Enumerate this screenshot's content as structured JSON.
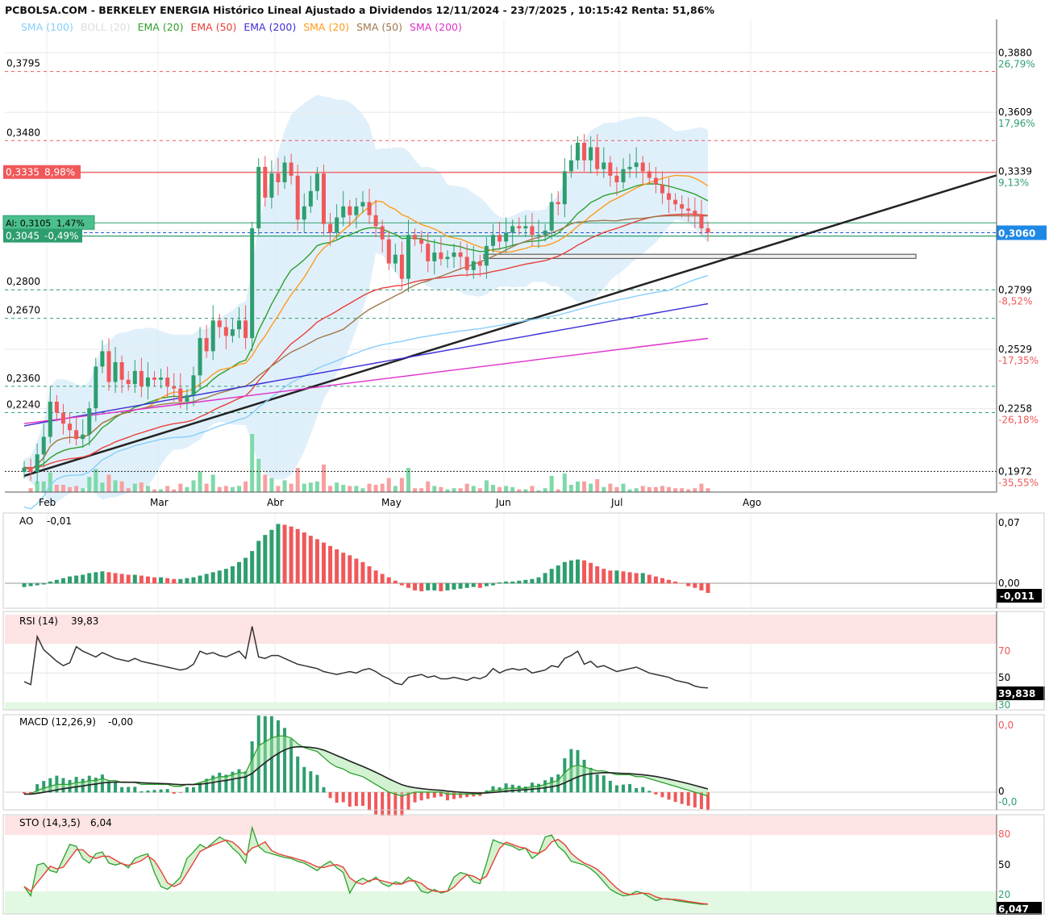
{
  "header": {
    "title": "PCBOLSA.COM - BERKELEY ENERGIA Histórico Lineal Ajustado a Dividendos 12/11/2024 - 23/7/2025 , 10:15:42 Renta: 51,86%"
  },
  "legend": [
    {
      "label": "SMA (100)",
      "color": "#87cefa"
    },
    {
      "label": "BOLL (20)",
      "color": "#dcdcdc"
    },
    {
      "label": "EMA (20)",
      "color": "#2ca02c"
    },
    {
      "label": "EMA (50)",
      "color": "#e8403a"
    },
    {
      "label": "EMA (200)",
      "color": "#3b2fd6"
    },
    {
      "label": "SMA (20)",
      "color": "#ff9a1a"
    },
    {
      "label": "SMA (50)",
      "color": "#a0784a"
    },
    {
      "label": "SMA (200)",
      "color": "#e030c8"
    }
  ],
  "colors": {
    "up": "#2e9e6e",
    "down": "#f0585a",
    "boll_fill": "#d8ecfa"
  },
  "main": {
    "ylim": [
      0.1878,
      0.3948
    ],
    "right_ticks": [
      {
        "v": 0.388,
        "label": "0,3880",
        "pct": "26,79%",
        "pct_color": "#2e9e6e"
      },
      {
        "v": 0.3609,
        "label": "0,3609",
        "pct": "17,96%",
        "pct_color": "#2e9e6e"
      },
      {
        "v": 0.3339,
        "label": "0,3339",
        "pct": "9,13%",
        "pct_color": "#2e9e6e"
      },
      {
        "v": 0.3069,
        "label": "0,3069",
        "pct": "",
        "pct_color": "#2e9e6e"
      },
      {
        "v": 0.2799,
        "label": "0,2799",
        "pct": "-8,52%",
        "pct_color": "#f0585a"
      },
      {
        "v": 0.2529,
        "label": "0,2529",
        "pct": "-17,35%",
        "pct_color": "#f0585a"
      },
      {
        "v": 0.2258,
        "label": "0,2258",
        "pct": "-26,18%",
        "pct_color": "#f0585a"
      },
      {
        "v": 0.1972,
        "label": "0,1972",
        "pct": "-35,55%",
        "pct_color": "#f0585a"
      }
    ],
    "levels": [
      {
        "v": 0.3795,
        "label": "0,3795",
        "color": "#f0585a"
      },
      {
        "v": 0.348,
        "label": "0,3480",
        "color": "#f0585a"
      },
      {
        "v": 0.28,
        "label": "0,2800",
        "color": "#2e9e6e"
      },
      {
        "v": 0.267,
        "label": "0,2670",
        "color": "#2e9e6e"
      },
      {
        "v": 0.236,
        "label": "0,2360",
        "color": "#2e9e6e"
      },
      {
        "v": 0.224,
        "label": "0,2240",
        "color": "#2e9e6e"
      }
    ],
    "tags": {
      "resistance": {
        "v": 0.3335,
        "label": "0,3335",
        "pct": "8,98%"
      },
      "alert": {
        "v": 0.3105,
        "label": "Al: 0,3105",
        "pct": "1,47%"
      },
      "support": {
        "v": 0.3045,
        "label": "0,3045",
        "pct": "-0,49%"
      },
      "last": {
        "v": 0.306,
        "label": "0,3060"
      }
    },
    "months": [
      "Feb",
      "Mar",
      "Abr",
      "May",
      "Jun",
      "Jul",
      "Ago"
    ]
  },
  "ao": {
    "title": "AO",
    "value": "-0,01",
    "ticks": [
      "0,07",
      "0,00"
    ],
    "last": "-0,011"
  },
  "rsi": {
    "title": "RSI (14)",
    "value": "39,83",
    "ticks": [
      "70",
      "50",
      "30"
    ],
    "last": "39,838"
  },
  "macd": {
    "title": "MACD (12,26,9)",
    "value": "-0,00",
    "ticks": [
      "0,0",
      "0",
      "-0,0"
    ]
  },
  "sto": {
    "title": "STO (14,3,5)",
    "value": "6,04",
    "ticks": [
      "80",
      "50",
      "20"
    ],
    "last": "6,047"
  },
  "chart_data": {
    "type": "candlestick",
    "x_start": "2025-01-27",
    "x_end": "2025-07-23",
    "close": [
      0.199,
      0.197,
      0.205,
      0.213,
      0.229,
      0.224,
      0.219,
      0.216,
      0.212,
      0.214,
      0.226,
      0.245,
      0.252,
      0.238,
      0.247,
      0.239,
      0.237,
      0.243,
      0.236,
      0.24,
      0.239,
      0.24,
      0.236,
      0.235,
      0.229,
      0.232,
      0.241,
      0.258,
      0.252,
      0.266,
      0.263,
      0.259,
      0.262,
      0.266,
      0.258,
      0.308,
      0.336,
      0.322,
      0.333,
      0.329,
      0.338,
      0.332,
      0.312,
      0.318,
      0.325,
      0.333,
      0.31,
      0.306,
      0.313,
      0.318,
      0.314,
      0.318,
      0.32,
      0.314,
      0.309,
      0.303,
      0.292,
      0.296,
      0.285,
      0.305,
      0.303,
      0.301,
      0.293,
      0.297,
      0.294,
      0.295,
      0.297,
      0.295,
      0.289,
      0.293,
      0.291,
      0.3,
      0.305,
      0.302,
      0.306,
      0.309,
      0.308,
      0.309,
      0.305,
      0.305,
      0.307,
      0.32,
      0.319,
      0.334,
      0.339,
      0.347,
      0.339,
      0.345,
      0.335,
      0.338,
      0.332,
      0.329,
      0.335,
      0.336,
      0.338,
      0.334,
      0.331,
      0.328,
      0.324,
      0.321,
      0.319,
      0.317,
      0.316,
      0.314,
      0.308,
      0.306
    ],
    "ao": [
      -0.004,
      -0.003,
      -0.002,
      -0.001,
      0.002,
      0.004,
      0.006,
      0.008,
      0.009,
      0.01,
      0.012,
      0.013,
      0.014,
      0.013,
      0.012,
      0.011,
      0.01,
      0.01,
      0.009,
      0.008,
      0.007,
      0.007,
      0.006,
      0.005,
      0.005,
      0.006,
      0.007,
      0.009,
      0.011,
      0.013,
      0.015,
      0.017,
      0.02,
      0.025,
      0.03,
      0.038,
      0.05,
      0.057,
      0.063,
      0.07,
      0.069,
      0.067,
      0.064,
      0.06,
      0.056,
      0.052,
      0.048,
      0.044,
      0.04,
      0.036,
      0.033,
      0.029,
      0.025,
      0.02,
      0.015,
      0.011,
      0.007,
      0.003,
      -0.002,
      -0.005,
      -0.008,
      -0.009,
      -0.008,
      -0.008,
      -0.009,
      -0.008,
      -0.007,
      -0.006,
      -0.005,
      -0.004,
      -0.005,
      -0.003,
      -0.002,
      0.001,
      0.002,
      0.002,
      0.003,
      0.004,
      0.005,
      0.007,
      0.012,
      0.017,
      0.021,
      0.025,
      0.027,
      0.028,
      0.027,
      0.024,
      0.02,
      0.017,
      0.015,
      0.015,
      0.014,
      0.013,
      0.012,
      0.012,
      0.01,
      0.008,
      0.006,
      0.004,
      0.002,
      0.0,
      -0.003,
      -0.005,
      -0.008,
      -0.011
    ],
    "rsi": [
      44,
      42,
      75,
      66,
      62,
      58,
      55,
      57,
      68,
      65,
      63,
      61,
      64,
      62,
      60,
      59,
      58,
      60,
      58,
      57,
      56,
      55,
      54,
      53,
      52,
      53,
      56,
      65,
      63,
      64,
      62,
      61,
      63,
      65,
      60,
      82,
      61,
      60,
      62,
      62,
      60,
      58,
      56,
      55,
      54,
      53,
      51,
      50,
      49,
      50,
      51,
      50,
      52,
      53,
      51,
      48,
      46,
      43,
      42,
      47,
      48,
      49,
      47,
      48,
      46,
      46,
      47,
      46,
      45,
      47,
      46,
      48,
      53,
      50,
      52,
      53,
      52,
      53,
      50,
      51,
      52,
      55,
      54,
      60,
      62,
      65,
      56,
      58,
      54,
      55,
      53,
      51,
      52,
      53,
      54,
      52,
      50,
      49,
      48,
      47,
      45,
      44,
      43,
      41,
      40,
      39.8
    ],
    "macd": [
      -0.001,
      -0.001,
      0.001,
      0.002,
      0.003,
      0.004,
      0.004,
      0.004,
      0.005,
      0.005,
      0.006,
      0.006,
      0.007,
      0.006,
      0.006,
      0.005,
      0.005,
      0.005,
      0.004,
      0.004,
      0.004,
      0.004,
      0.004,
      0.003,
      0.003,
      0.004,
      0.004,
      0.005,
      0.006,
      0.007,
      0.008,
      0.008,
      0.009,
      0.01,
      0.01,
      0.017,
      0.024,
      0.026,
      0.028,
      0.029,
      0.029,
      0.028,
      0.025,
      0.023,
      0.022,
      0.021,
      0.018,
      0.015,
      0.013,
      0.012,
      0.01,
      0.009,
      0.008,
      0.006,
      0.004,
      0.002,
      0.0,
      -0.001,
      -0.002,
      -0.001,
      0.0,
      0.0,
      0.0,
      0.0,
      0.0,
      -0.001,
      -0.001,
      -0.001,
      -0.001,
      -0.001,
      -0.001,
      0.0,
      0.001,
      0.001,
      0.002,
      0.002,
      0.002,
      0.002,
      0.003,
      0.003,
      0.004,
      0.005,
      0.006,
      0.01,
      0.013,
      0.014,
      0.013,
      0.012,
      0.011,
      0.011,
      0.01,
      0.009,
      0.009,
      0.009,
      0.008,
      0.008,
      0.007,
      0.006,
      0.005,
      0.004,
      0.003,
      0.002,
      0.001,
      0.0,
      -0.001,
      -0.002
    ],
    "sto": [
      25,
      15,
      48,
      50,
      42,
      40,
      55,
      70,
      68,
      55,
      50,
      60,
      62,
      50,
      48,
      50,
      45,
      55,
      58,
      60,
      40,
      25,
      22,
      28,
      35,
      55,
      62,
      70,
      66,
      72,
      78,
      74,
      66,
      60,
      50,
      88,
      68,
      62,
      60,
      58,
      56,
      55,
      52,
      50,
      46,
      42,
      48,
      52,
      45,
      40,
      18,
      30,
      34,
      30,
      35,
      28,
      25,
      30,
      28,
      35,
      30,
      20,
      18,
      22,
      18,
      20,
      35,
      40,
      38,
      30,
      28,
      50,
      75,
      72,
      70,
      68,
      64,
      66,
      55,
      60,
      78,
      80,
      68,
      62,
      52,
      50,
      48,
      44,
      38,
      30,
      22,
      18,
      15,
      16,
      20,
      18,
      14,
      10,
      12,
      12,
      10,
      9,
      8,
      7,
      6,
      6
    ]
  }
}
